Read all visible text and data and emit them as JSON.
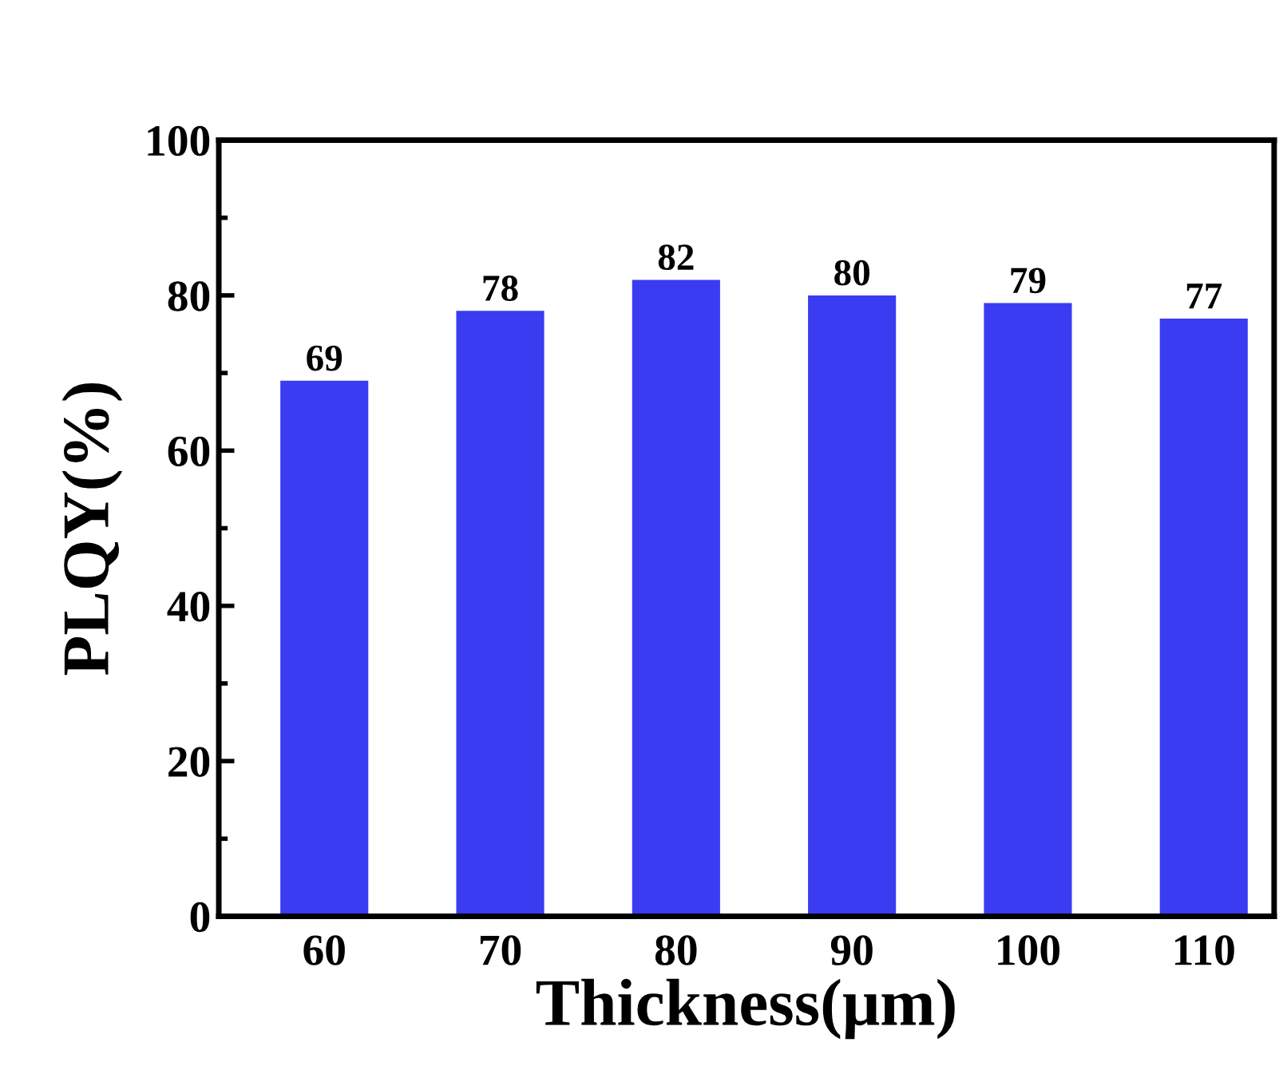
{
  "chart_data": {
    "type": "bar",
    "xlabel": "Thickness(μm)",
    "ylabel": "PLQY(%)",
    "categories": [
      "60",
      "70",
      "80",
      "90",
      "100",
      "110"
    ],
    "values": [
      69,
      78,
      82,
      80,
      79,
      77
    ],
    "color": "#3a3cf2",
    "ylim": [
      0,
      100
    ],
    "yticks": [
      0,
      20,
      40,
      60,
      80,
      100
    ],
    "data_labels": true,
    "grid": false,
    "legend": false
  }
}
